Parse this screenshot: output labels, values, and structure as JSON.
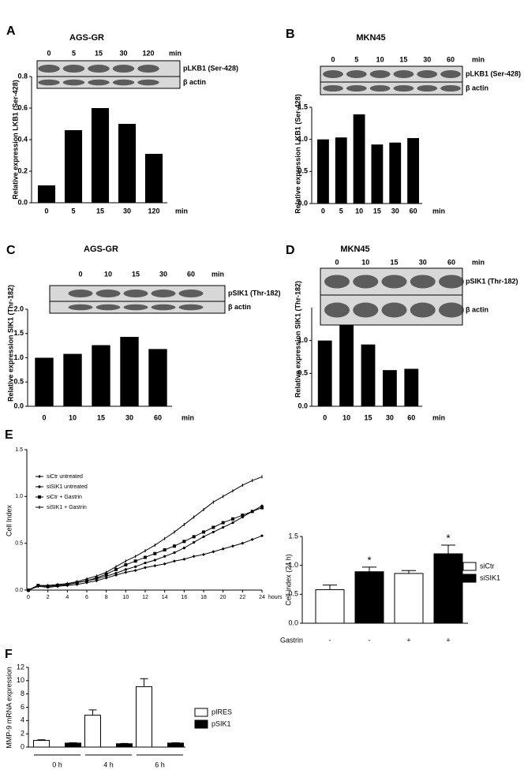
{
  "chart_data": [
    {
      "type": "bar",
      "label": "A",
      "title": "AGS-GR",
      "categories": [
        "0",
        "5",
        "15",
        "30",
        "120"
      ],
      "values": [
        0.11,
        0.46,
        0.6,
        0.5,
        0.31
      ],
      "color": "#000000",
      "ylim": [
        0,
        0.8
      ],
      "yticks": [
        {
          "value": 0,
          "label": "0.0"
        },
        0.2,
        0.4,
        0.6,
        0.8
      ],
      "ylabel": "Relative expression LKB1 (Ser-428)",
      "x_unit": "min",
      "blot": {
        "rows": [
          "pLKB1 (Ser-428)",
          "β actin"
        ]
      }
    },
    {
      "type": "bar",
      "label": "B",
      "title": "MKN45",
      "categories": [
        "0",
        "5",
        "10",
        "15",
        "30",
        "60"
      ],
      "values": [
        1.0,
        1.03,
        1.39,
        0.92,
        0.95,
        1.02
      ],
      "color": "#000000",
      "ylim": [
        0,
        1.5
      ],
      "yticks": [
        {
          "value": 0,
          "label": "0.0"
        },
        0.5,
        {
          "value": 1,
          "label": "1.0"
        },
        1.5
      ],
      "ylabel": "Relative expression LKB1 (Ser-428)",
      "x_unit": "min",
      "blot": {
        "rows": [
          "pLKB1 (Ser-428)",
          "β actin"
        ]
      }
    },
    {
      "type": "bar",
      "label": "C",
      "title": "AGS-GR",
      "categories": [
        "0",
        "10",
        "15",
        "30",
        "60"
      ],
      "values": [
        1.0,
        1.08,
        1.26,
        1.43,
        1.18
      ],
      "color": "#000000",
      "ylim": [
        0,
        2
      ],
      "yticks": [
        {
          "value": 0,
          "label": "0.0"
        },
        0.5,
        {
          "value": 1,
          "label": "1.0"
        },
        1.5,
        {
          "value": 2,
          "label": "2.0"
        }
      ],
      "ylabel": "Relative expression SIK1 (Thr-182)",
      "x_unit": "min",
      "blot": {
        "rows": [
          "pSIK1 (Thr-182)",
          "β actin"
        ]
      }
    },
    {
      "type": "bar",
      "label": "D",
      "title": "MKN45",
      "categories": [
        "0",
        "10",
        "15",
        "30",
        "60"
      ],
      "values": [
        1.0,
        1.23,
        0.94,
        0.55,
        0.57
      ],
      "color": "#000000",
      "ylim": [
        0,
        1.5
      ],
      "yticks": [
        {
          "value": 0,
          "label": "0.0"
        },
        0.5,
        {
          "value": 1,
          "label": "1.0"
        }
      ],
      "ylabel": "Relative expression SIK1 (Thr-182)",
      "x_unit": "min",
      "blot": {
        "rows": [
          "pSIK1 (Thr-182)",
          "β actin"
        ]
      }
    },
    {
      "type": "line",
      "label": "E",
      "x": [
        0,
        1,
        2,
        3,
        4,
        5,
        6,
        7,
        8,
        9,
        10,
        11,
        12,
        13,
        14,
        15,
        16,
        17,
        18,
        19,
        20,
        21,
        22,
        23,
        24
      ],
      "xlim": [
        0,
        24
      ],
      "xticks": [
        0,
        2,
        4,
        6,
        8,
        10,
        12,
        14,
        16,
        18,
        20,
        22,
        24
      ],
      "x_unit": "hours",
      "ylim": [
        0,
        1.5
      ],
      "yticks": [
        {
          "value": 0,
          "label": "0.0"
        },
        0.5,
        {
          "value": 1,
          "label": "1.0"
        },
        1.5
      ],
      "ylabel": "Cell Index",
      "series": [
        {
          "name": "siCtr untreated",
          "color": "#000000",
          "marker": "diamond",
          "values": [
            0,
            0.04,
            0.03,
            0.04,
            0.05,
            0.06,
            0.08,
            0.1,
            0.13,
            0.16,
            0.19,
            0.21,
            0.24,
            0.26,
            0.28,
            0.31,
            0.33,
            0.36,
            0.38,
            0.41,
            0.44,
            0.47,
            0.5,
            0.54,
            0.58
          ]
        },
        {
          "name": "siSIK1 untreated",
          "color": "#000000",
          "marker": "circle",
          "values": [
            0,
            0.05,
            0.04,
            0.05,
            0.06,
            0.08,
            0.1,
            0.12,
            0.15,
            0.18,
            0.22,
            0.25,
            0.29,
            0.32,
            0.36,
            0.4,
            0.45,
            0.51,
            0.57,
            0.62,
            0.67,
            0.72,
            0.78,
            0.84,
            0.9
          ]
        },
        {
          "name": "siCtr + Gastrin",
          "color": "#000000",
          "marker": "square",
          "values": [
            0,
            0.05,
            0.04,
            0.05,
            0.06,
            0.08,
            0.1,
            0.13,
            0.17,
            0.22,
            0.27,
            0.31,
            0.35,
            0.39,
            0.43,
            0.47,
            0.52,
            0.57,
            0.62,
            0.67,
            0.72,
            0.76,
            0.8,
            0.84,
            0.88
          ]
        },
        {
          "name": "siSIK1 + Gastrin",
          "color": "#000000",
          "marker": "tick",
          "values": [
            0,
            0.05,
            0.05,
            0.06,
            0.07,
            0.09,
            0.12,
            0.15,
            0.19,
            0.25,
            0.31,
            0.36,
            0.42,
            0.48,
            0.55,
            0.62,
            0.7,
            0.78,
            0.86,
            0.94,
            1.0,
            1.06,
            1.12,
            1.17,
            1.21
          ]
        }
      ]
    },
    {
      "type": "bar",
      "group_label": "Gastrin",
      "categories": [
        "-",
        "-",
        "+",
        "+"
      ],
      "ylim": [
        0,
        1.5
      ],
      "yticks": [
        {
          "value": 0,
          "label": "0.0"
        },
        0.5,
        {
          "value": 1,
          "label": "1.0"
        },
        1.5
      ],
      "ylabel": "Cell index (24 h)",
      "significance": [
        null,
        "*",
        null,
        "*"
      ],
      "series": [
        {
          "name": "siCtr",
          "color": "#ffffff",
          "values": [
            0.58,
            null,
            0.86,
            null
          ],
          "errors": [
            0.08,
            null,
            0.05,
            null
          ]
        },
        {
          "name": "siSIK1",
          "color": "#000000",
          "values": [
            null,
            0.89,
            null,
            1.2
          ],
          "errors": [
            null,
            0.08,
            null,
            0.15
          ]
        }
      ]
    },
    {
      "type": "bar",
      "label": "F",
      "categories": [
        "0 h",
        "4 h",
        "6 h"
      ],
      "ylim": [
        0,
        12
      ],
      "yticks": [
        0,
        2,
        4,
        6,
        8,
        10,
        12
      ],
      "ylabel": "MMP-9 mRNA expression",
      "series": [
        {
          "name": "pIRES",
          "color": "#ffffff",
          "values": [
            1.0,
            4.8,
            9.1
          ],
          "errors": [
            0.1,
            0.8,
            1.2
          ]
        },
        {
          "name": "pSIK1",
          "color": "#000000",
          "values": [
            0.6,
            0.5,
            0.6
          ],
          "errors": [
            0.05,
            0.05,
            0.05
          ]
        }
      ]
    }
  ]
}
